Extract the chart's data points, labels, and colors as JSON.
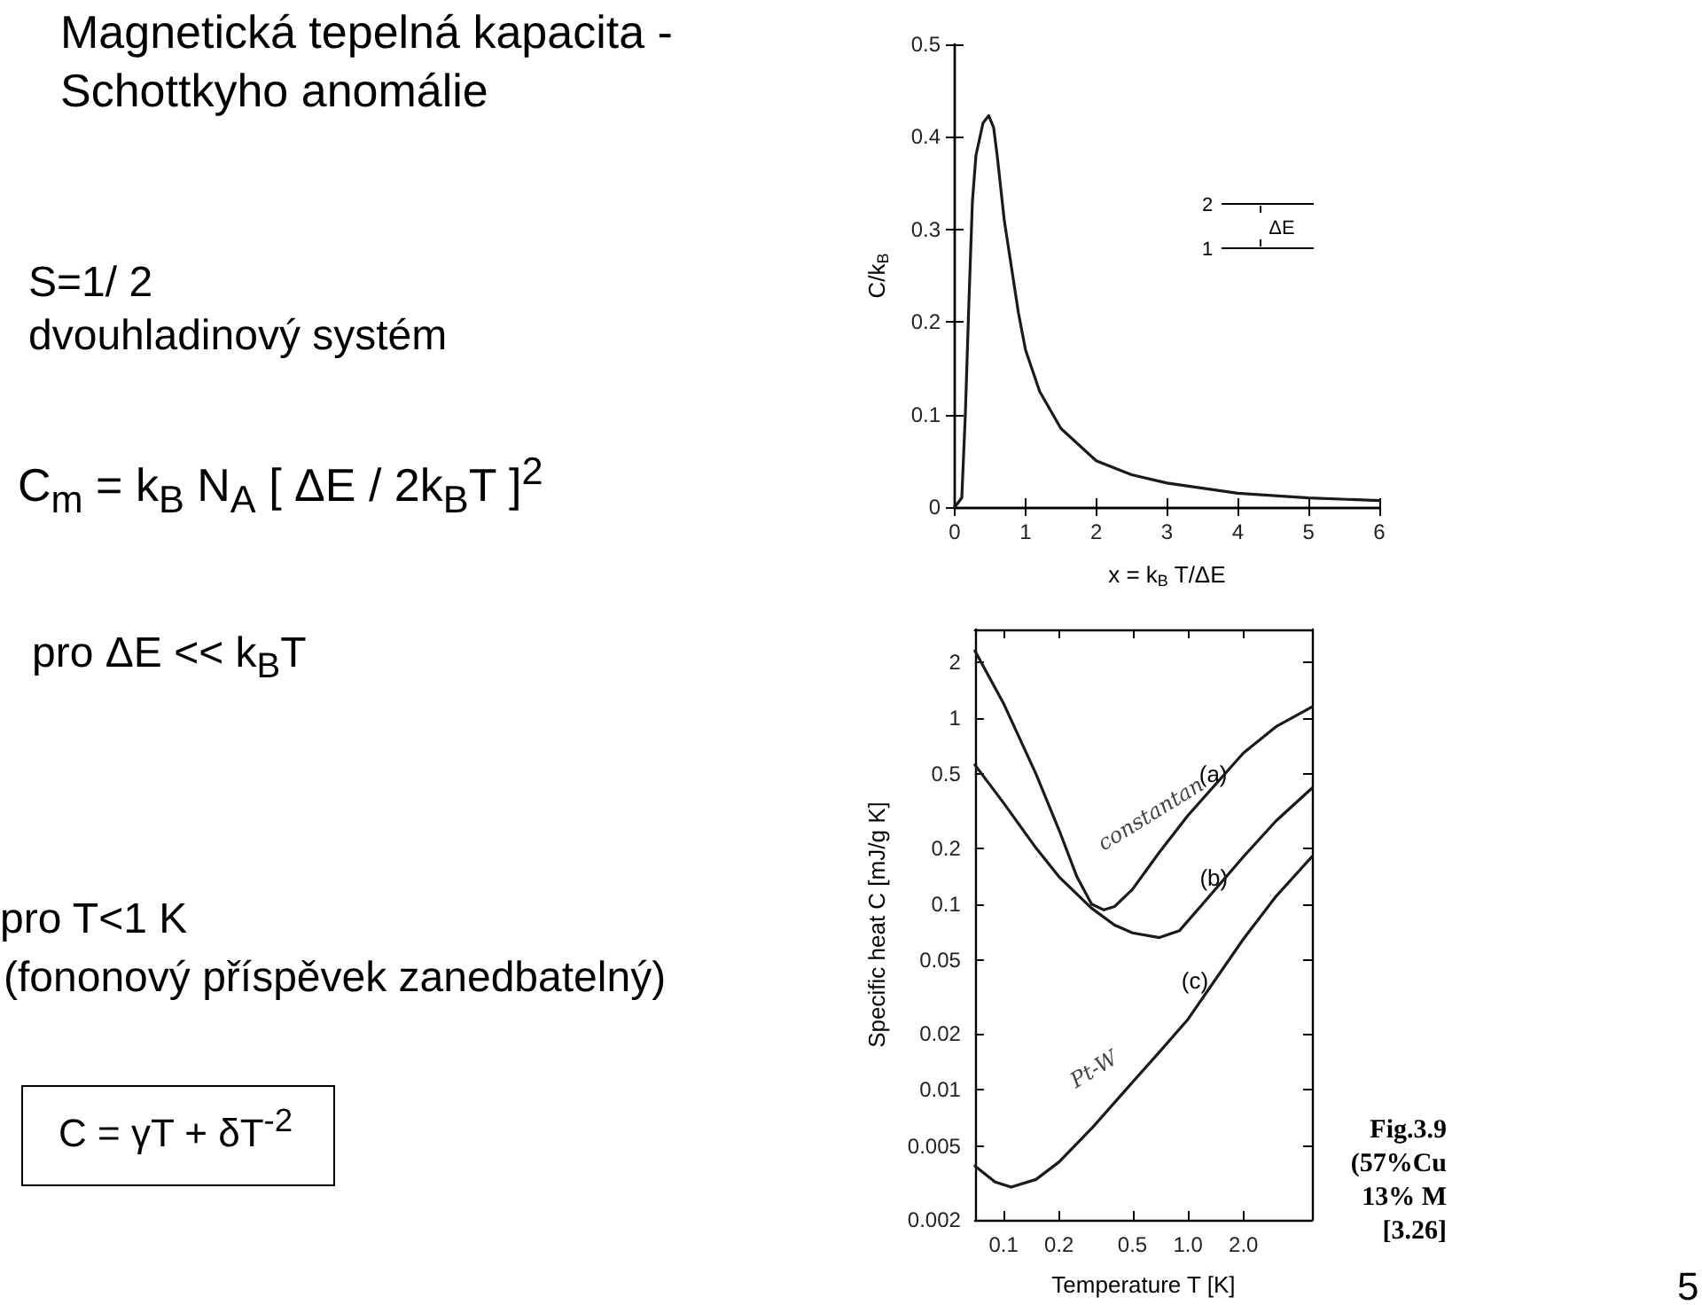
{
  "chart_data": [
    {
      "type": "other",
      "title": "Magnetická tepelná kapacita - Schottkyho anomálie",
      "annotations": [
        "S=1/ 2",
        "dvouhladinový systém",
        "C$_{m}$ = k$_{B}$ N$_{A}$ [ ΔE / 2k$_{B}$T ]$^{2}$",
        "pro  ΔE << k$_{B}$T",
        "pro T<1 K",
        "(fononový příspěvek zanedbatelný)",
        "C = γT + δT$^{-2}$",
        "5"
      ]
    },
    {
      "type": "line",
      "xlabel": "x = k$_{B}$ T/ΔE",
      "ylabel": "C/k$_{B}$",
      "xlim": [
        0,
        6
      ],
      "ylim": [
        0,
        0.5
      ],
      "xticks": [
        0,
        1,
        2,
        3,
        4,
        5,
        6
      ],
      "yticks": [
        0,
        0.1,
        0.2,
        0.3,
        0.4,
        0.5
      ],
      "grid": false,
      "marker": "none",
      "line_style": "solid",
      "annotations": [
        "2",
        "1",
        "ΔE"
      ],
      "series": [
        {
          "color": "#1a1a1a",
          "x": [
            0,
            0.1,
            0.15,
            0.2,
            0.25,
            0.3,
            0.4,
            0.48,
            0.55,
            0.6,
            0.7,
            0.8,
            0.9,
            1,
            1.2,
            1.5,
            2,
            2.5,
            3,
            4,
            5,
            6
          ],
          "values": [
            0,
            0.01,
            0.1,
            0.22,
            0.33,
            0.38,
            0.415,
            0.423,
            0.41,
            0.38,
            0.31,
            0.26,
            0.21,
            0.17,
            0.125,
            0.085,
            0.05,
            0.035,
            0.026,
            0.015,
            0.01,
            0.007
          ]
        }
      ]
    },
    {
      "type": "line",
      "xlabel": "Temperature T [K]",
      "ylabel": "Specific heat C [mJ/g K]",
      "log": "xy",
      "xlim": [
        0.07,
        4.7
      ],
      "ylim": [
        0.002,
        3
      ],
      "xticks": [
        0.1,
        0.2,
        0.5,
        {
          "value": 1,
          "label": "1.0"
        },
        {
          "value": 2,
          "label": "2.0"
        }
      ],
      "yticks": [
        0.002,
        0.005,
        0.01,
        0.02,
        0.05,
        0.1,
        0.2,
        0.5,
        1,
        2
      ],
      "grid": false,
      "marker": "none",
      "line_style": "solid",
      "annotations": [
        {
          "text": "(a)",
          "x": 1.37,
          "y": 0.5
        },
        {
          "text": "(b)",
          "x": 1.38,
          "y": 0.139
        },
        "(c)",
        "constantan",
        "Pt-W",
        "Fig.3.9",
        "(57%Cu",
        "13% M",
        "[3.26]"
      ],
      "series": [
        {
          "color": "#1a1a1a",
          "x": [
            0.07,
            0.1,
            0.15,
            0.2,
            0.25,
            0.3,
            0.35,
            0.4,
            0.5,
            0.7,
            1,
            2,
            3,
            4.7
          ],
          "values": [
            2.3,
            1.2,
            0.5,
            0.25,
            0.14,
            0.1,
            0.093,
            0.097,
            0.12,
            0.19,
            0.3,
            0.65,
            0.9,
            1.15
          ]
        },
        {
          "color": "#1a1a1a",
          "x": [
            0.07,
            0.1,
            0.15,
            0.2,
            0.3,
            0.4,
            0.5,
            0.7,
            0.9,
            1.2,
            2,
            3,
            4.7
          ],
          "values": [
            0.56,
            0.35,
            0.2,
            0.14,
            0.095,
            0.077,
            0.07,
            0.066,
            0.072,
            0.1,
            0.18,
            0.28,
            0.42
          ]
        },
        {
          "color": "#1a1a1a",
          "x": [
            0.07,
            0.09,
            0.11,
            0.15,
            0.2,
            0.3,
            0.5,
            0.7,
            1,
            2,
            3,
            4.7
          ],
          "values": [
            0.0039,
            0.0032,
            0.003,
            0.0033,
            0.0041,
            0.0062,
            0.011,
            0.016,
            0.024,
            0.065,
            0.11,
            0.18
          ]
        }
      ]
    }
  ]
}
